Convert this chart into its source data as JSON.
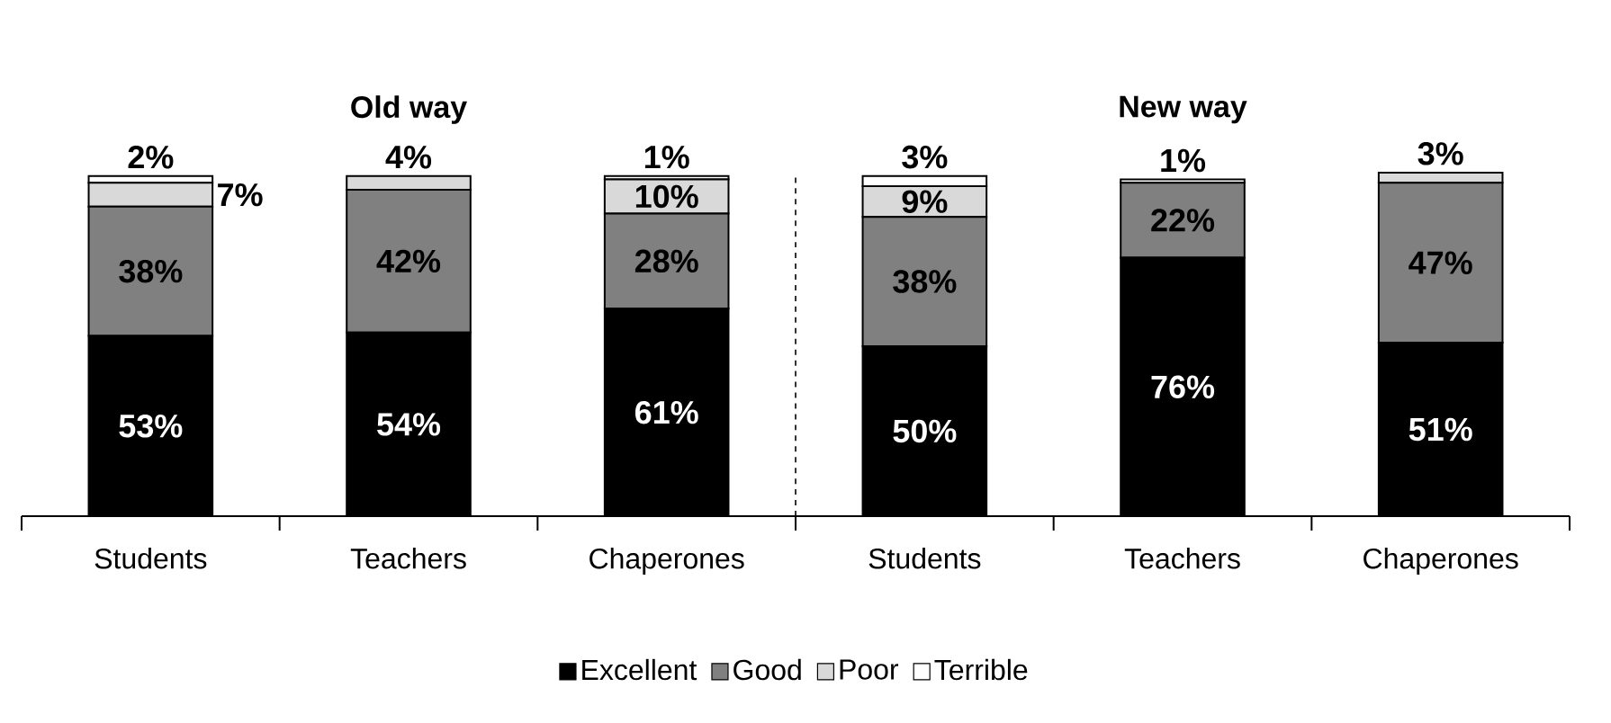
{
  "chart_data": {
    "type": "bar",
    "stacked": true,
    "categories": [
      "Students",
      "Teachers",
      "Chaperones",
      "Students",
      "Teachers",
      "Chaperones"
    ],
    "series": [
      {
        "name": "Excellent",
        "color": "#000000",
        "values": [
          53,
          54,
          61,
          50,
          76,
          51
        ],
        "value_labels": [
          "53%",
          "54%",
          "61%",
          "50%",
          "76%",
          "51%"
        ]
      },
      {
        "name": "Good",
        "color": "#808080",
        "values": [
          38,
          42,
          28,
          38,
          22,
          47
        ],
        "value_labels": [
          "38%",
          "42%",
          "28%",
          "38%",
          "22%",
          "47%"
        ]
      },
      {
        "name": "Poor",
        "color": "#d9d9d9",
        "values": [
          7,
          4,
          10,
          9,
          0,
          3
        ],
        "value_labels": [
          "7%",
          "4%",
          "10%",
          "9%",
          null,
          "3%"
        ]
      },
      {
        "name": "Terrible",
        "color": "#ffffff",
        "values": [
          2,
          0,
          1,
          3,
          1,
          0
        ],
        "value_labels": [
          "2%",
          null,
          "1%",
          "3%",
          "1%",
          null
        ]
      }
    ],
    "ylim": [
      0,
      101
    ],
    "legend": "bottom",
    "annotations": [
      "Old way",
      "New way"
    ]
  }
}
